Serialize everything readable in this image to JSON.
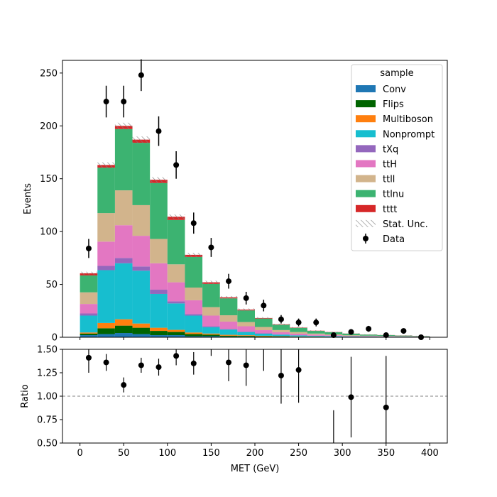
{
  "chart_data": [
    {
      "type": "bar",
      "stacked": true,
      "ylabel": "Events",
      "ylim": [
        0,
        262
      ],
      "xlim": [
        -20,
        420
      ],
      "yticks": [
        0,
        50,
        100,
        150,
        200,
        250
      ],
      "bin_edges": [
        0,
        20,
        40,
        60,
        80,
        100,
        120,
        140,
        160,
        180,
        200,
        220,
        240,
        260,
        280,
        300,
        320,
        340,
        360,
        380,
        400
      ],
      "legend": {
        "title": "sample",
        "placement": "top-right",
        "unc_label": "Stat. Unc.",
        "data_label": "Data"
      },
      "series": [
        {
          "name": "Conv",
          "color": "#1f77b4",
          "values": [
            2,
            3,
            4,
            3,
            2,
            2,
            1,
            1,
            0.5,
            0.5,
            0.3,
            0.3,
            0.2,
            0.2,
            0.1,
            0.1,
            0.1,
            0.1,
            0.1,
            0.1
          ]
        },
        {
          "name": "Flips",
          "color": "#006400",
          "values": [
            1.5,
            5.5,
            7,
            6,
            4,
            3,
            2,
            1.5,
            1,
            0.8,
            0.6,
            0.4,
            0.3,
            0.2,
            0.2,
            0.1,
            0.1,
            0.1,
            0.1,
            0.1
          ]
        },
        {
          "name": "Multiboson",
          "color": "#ff7f0e",
          "values": [
            1,
            5,
            6,
            4,
            3,
            2,
            1.5,
            1,
            0.8,
            0.6,
            0.5,
            0.3,
            0.2,
            0.2,
            0.1,
            0.1,
            0.1,
            0.1,
            0.1,
            0.1
          ]
        },
        {
          "name": "Nonprompt",
          "color": "#17becf",
          "values": [
            16,
            50,
            53,
            50,
            32,
            25,
            16,
            6,
            5,
            3,
            2,
            1.5,
            1,
            0.8,
            0.6,
            0.4,
            0.3,
            0.2,
            0.2,
            0.1
          ]
        },
        {
          "name": "tXq",
          "color": "#9467bd",
          "values": [
            2,
            4,
            5,
            4,
            4,
            2,
            1.5,
            1,
            0.5,
            0.5,
            0.3,
            0.3,
            0.2,
            0.1,
            0.1,
            0.1,
            0.1,
            0.1,
            0.1,
            0.1
          ]
        },
        {
          "name": "ttH",
          "color": "#e377c2",
          "values": [
            9,
            23,
            31,
            29,
            25,
            18,
            13,
            10,
            7,
            5,
            3,
            2,
            1.5,
            1,
            0.8,
            0.5,
            0.4,
            0.3,
            0.2,
            0.1
          ]
        },
        {
          "name": "ttll",
          "color": "#d2b48c",
          "values": [
            11,
            27,
            33,
            29,
            23,
            17,
            12,
            8,
            6,
            4,
            3,
            2,
            1.5,
            1,
            0.8,
            0.6,
            0.4,
            0.3,
            0.2,
            0.1
          ]
        },
        {
          "name": "ttlnu",
          "color": "#3cb371",
          "values": [
            16,
            43,
            58,
            59,
            53,
            42,
            29,
            22,
            16,
            11,
            8,
            5,
            4,
            2.5,
            2,
            1.5,
            1,
            0.8,
            0.6,
            0.4
          ]
        },
        {
          "name": "tttt",
          "color": "#d62728",
          "values": [
            2,
            2.5,
            3,
            3,
            3,
            3,
            2,
            1.5,
            1,
            0.8,
            0.5,
            0.4,
            0.3,
            0.2,
            0.2,
            0.1,
            0.1,
            0.1,
            0.1,
            0.1
          ]
        }
      ],
      "stat_unc": [
        1.5,
        2.5,
        3,
        3,
        2.5,
        2.2,
        1.8,
        1.5,
        1.2,
        1,
        0.8,
        0.6,
        0.5,
        0.4,
        0.3,
        0.3,
        0.2,
        0.2,
        0.2,
        0.2
      ],
      "data_points": {
        "name": "Data",
        "x": [
          10,
          30,
          50,
          70,
          90,
          110,
          130,
          150,
          170,
          190,
          210,
          230,
          250,
          270,
          290,
          310,
          330,
          350,
          370,
          390
        ],
        "y": [
          84,
          223,
          223,
          248,
          195,
          163,
          108,
          85,
          53,
          37,
          30,
          17,
          14,
          14,
          2,
          5,
          8,
          2,
          6,
          0
        ],
        "err": [
          9,
          15,
          15,
          15,
          14,
          13,
          10,
          9,
          7,
          6,
          5.5,
          4,
          3.7,
          3.7,
          1.4,
          2.2,
          2.8,
          1.4,
          2.4,
          0
        ]
      }
    },
    {
      "type": "scatter",
      "xlabel": "MET (GeV)",
      "ylabel": "Ratio",
      "ylim": [
        0.5,
        1.5
      ],
      "yticks": [
        "0.50",
        "0.75",
        "1.00",
        "1.25",
        "1.50"
      ],
      "xticks": [
        0,
        50,
        100,
        150,
        200,
        250,
        300,
        350,
        400
      ],
      "reference_line": 1.0,
      "points": {
        "x": [
          10,
          30,
          50,
          70,
          90,
          110,
          130,
          150,
          170,
          190,
          210,
          230,
          250,
          290,
          310,
          330,
          350
        ],
        "y": [
          1.41,
          1.36,
          1.12,
          1.33,
          1.31,
          1.43,
          1.35,
          1.61,
          1.36,
          1.33,
          1.55,
          1.22,
          1.28,
          0.4,
          0.99,
          1.6,
          0.88
        ],
        "err": [
          0.16,
          0.09,
          0.08,
          0.08,
          0.09,
          0.1,
          0.12,
          0.18,
          0.2,
          0.22,
          0.28,
          0.3,
          0.35,
          0.45,
          0.43,
          0.1,
          0.55
        ]
      }
    }
  ]
}
